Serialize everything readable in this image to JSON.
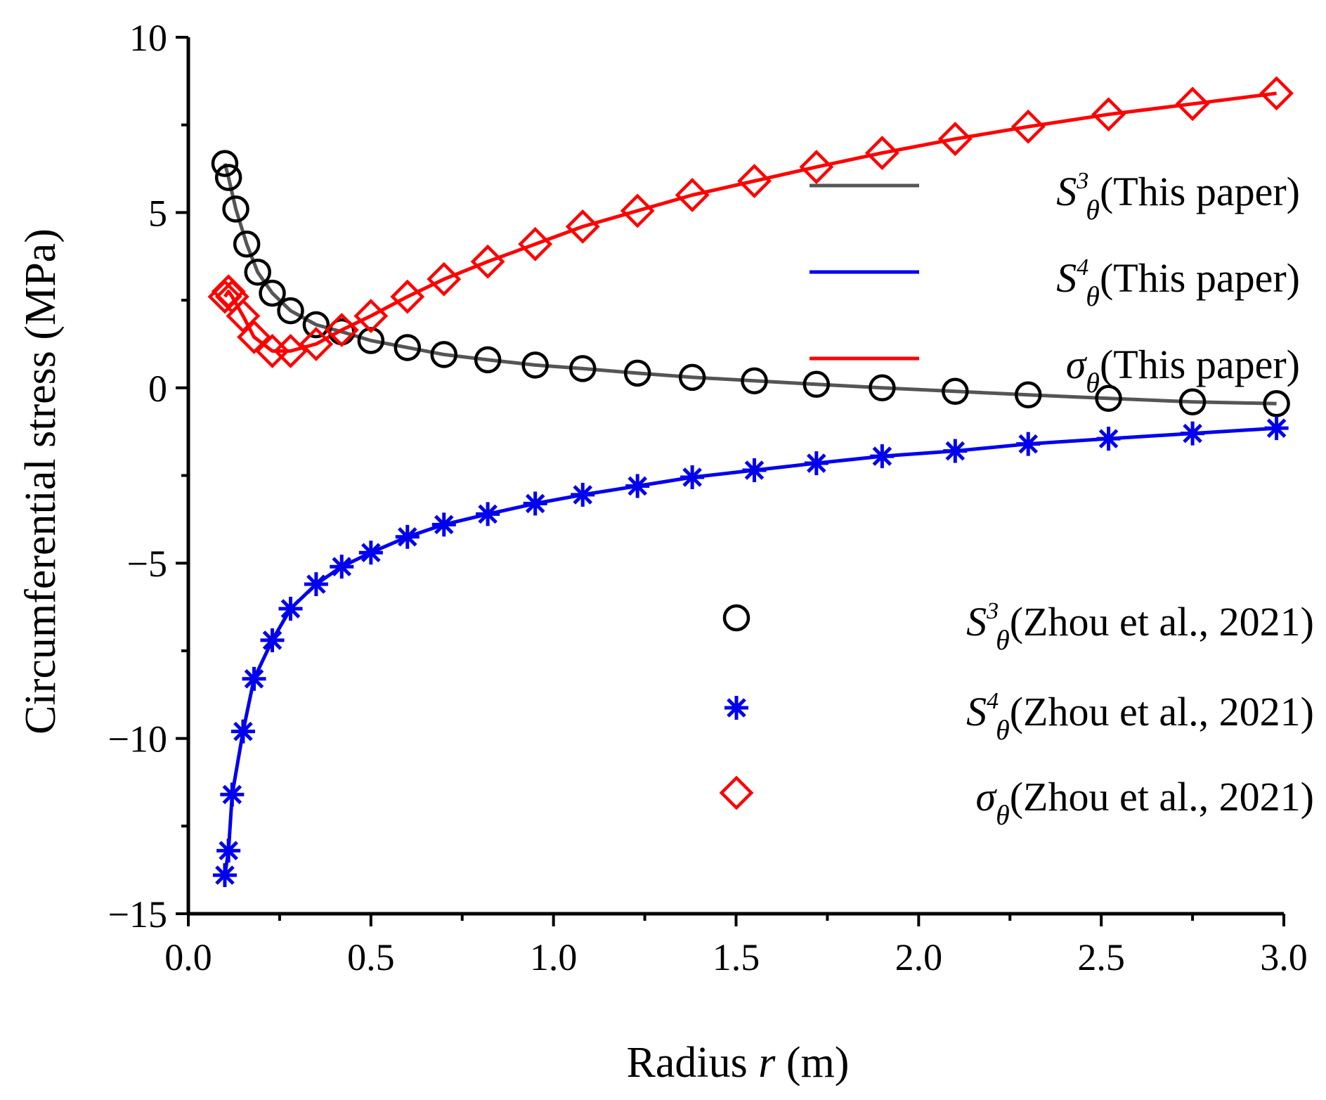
{
  "chart_data": {
    "type": "line",
    "xlabel": "Radius r (m)",
    "xlabel_parts": {
      "before": "Radius ",
      "var": "r",
      "after": " (m)"
    },
    "ylabel": "Circumferential stress (MPa)",
    "xlim": [
      0.0,
      3.0
    ],
    "ylim": [
      -15,
      10
    ],
    "x_ticks": [
      0.0,
      0.5,
      1.0,
      1.5,
      2.0,
      2.5,
      3.0
    ],
    "x_tick_labels": [
      "0.0",
      "0.5",
      "1.0",
      "1.5",
      "2.0",
      "2.5",
      "3.0"
    ],
    "y_ticks": [
      10,
      5,
      0,
      -5,
      -10,
      -15
    ],
    "y_tick_labels": [
      "10",
      "5",
      "0",
      "−5",
      "−10",
      "−15"
    ],
    "grid": false,
    "legend_placement": [
      "right",
      "bottom-right"
    ],
    "colors": {
      "S3": "#555555",
      "S4": "#0000ee",
      "sigma": "#ff0000",
      "ref_circle": "#000000",
      "ref_star": "#0000ee",
      "ref_diamond": "#ff0000"
    },
    "lines": [
      {
        "key": "S3",
        "legend": {
          "symbol": "S",
          "sup": "3",
          "sub": "θ",
          "text": "(This paper)"
        },
        "color": "#555555",
        "x": [
          0.1,
          0.11,
          0.13,
          0.16,
          0.19,
          0.23,
          0.28,
          0.35,
          0.42,
          0.5,
          0.6,
          0.7,
          0.82,
          0.95,
          1.08,
          1.23,
          1.38,
          1.55,
          1.72,
          1.9,
          2.1,
          2.3,
          2.52,
          2.75,
          2.98
        ],
        "y": [
          6.4,
          6.0,
          5.1,
          4.1,
          3.3,
          2.7,
          2.2,
          1.8,
          1.6,
          1.35,
          1.15,
          0.95,
          0.8,
          0.65,
          0.55,
          0.42,
          0.3,
          0.2,
          0.1,
          0.0,
          -0.1,
          -0.2,
          -0.3,
          -0.4,
          -0.45
        ]
      },
      {
        "key": "S4",
        "legend": {
          "symbol": "S",
          "sup": "4",
          "sub": "θ",
          "text": "(This paper)"
        },
        "color": "#0000ee",
        "x": [
          0.1,
          0.11,
          0.12,
          0.15,
          0.18,
          0.23,
          0.28,
          0.35,
          0.42,
          0.5,
          0.6,
          0.7,
          0.82,
          0.95,
          1.08,
          1.23,
          1.38,
          1.55,
          1.72,
          1.9,
          2.1,
          2.3,
          2.52,
          2.75,
          2.98
        ],
        "y": [
          -13.9,
          -13.2,
          -11.6,
          -9.8,
          -8.3,
          -7.2,
          -6.3,
          -5.6,
          -5.1,
          -4.7,
          -4.25,
          -3.9,
          -3.6,
          -3.3,
          -3.05,
          -2.8,
          -2.55,
          -2.35,
          -2.15,
          -1.95,
          -1.8,
          -1.6,
          -1.45,
          -1.3,
          -1.15
        ]
      },
      {
        "key": "sigma",
        "legend": {
          "symbol": "σ",
          "sup": "",
          "sub": "θ",
          "text": "(This paper)"
        },
        "color": "#ff0000",
        "x": [
          0.1,
          0.11,
          0.12,
          0.15,
          0.18,
          0.23,
          0.28,
          0.35,
          0.42,
          0.5,
          0.6,
          0.7,
          0.82,
          0.95,
          1.08,
          1.23,
          1.38,
          1.55,
          1.72,
          1.9,
          2.1,
          2.3,
          2.52,
          2.75,
          2.98
        ],
        "y": [
          2.6,
          2.75,
          2.6,
          2.05,
          1.45,
          1.05,
          1.05,
          1.25,
          1.65,
          2.05,
          2.6,
          3.1,
          3.6,
          4.1,
          4.6,
          5.05,
          5.5,
          5.9,
          6.3,
          6.7,
          7.1,
          7.45,
          7.8,
          8.1,
          8.4
        ]
      }
    ],
    "markers": [
      {
        "key": "ref_circle",
        "marker": "circle",
        "legend": {
          "symbol": "S",
          "sup": "3",
          "sub": "θ",
          "text": "(Zhou et al., 2021)"
        },
        "color": "#000000",
        "x": [
          0.1,
          0.11,
          0.13,
          0.16,
          0.19,
          0.23,
          0.28,
          0.35,
          0.42,
          0.5,
          0.6,
          0.7,
          0.82,
          0.95,
          1.08,
          1.23,
          1.38,
          1.55,
          1.72,
          1.9,
          2.1,
          2.3,
          2.52,
          2.75,
          2.98
        ],
        "y": [
          6.4,
          6.0,
          5.1,
          4.1,
          3.3,
          2.7,
          2.2,
          1.8,
          1.6,
          1.35,
          1.15,
          0.95,
          0.8,
          0.65,
          0.55,
          0.42,
          0.3,
          0.2,
          0.1,
          0.0,
          -0.1,
          -0.2,
          -0.3,
          -0.4,
          -0.45
        ]
      },
      {
        "key": "ref_star",
        "marker": "star",
        "legend": {
          "symbol": "S",
          "sup": "4",
          "sub": "θ",
          "text": "(Zhou et al., 2021)"
        },
        "color": "#0000ee",
        "x": [
          0.1,
          0.11,
          0.12,
          0.15,
          0.18,
          0.23,
          0.28,
          0.35,
          0.42,
          0.5,
          0.6,
          0.7,
          0.82,
          0.95,
          1.08,
          1.23,
          1.38,
          1.55,
          1.72,
          1.9,
          2.1,
          2.3,
          2.52,
          2.75,
          2.98
        ],
        "y": [
          -13.9,
          -13.2,
          -11.6,
          -9.8,
          -8.3,
          -7.2,
          -6.3,
          -5.6,
          -5.1,
          -4.7,
          -4.25,
          -3.9,
          -3.6,
          -3.3,
          -3.05,
          -2.8,
          -2.55,
          -2.35,
          -2.15,
          -1.95,
          -1.8,
          -1.6,
          -1.45,
          -1.3,
          -1.15
        ]
      },
      {
        "key": "ref_diamond",
        "marker": "diamond",
        "legend": {
          "symbol": "σ",
          "sup": "",
          "sub": "θ",
          "text": "(Zhou et al., 2021)"
        },
        "color": "#ff0000",
        "x": [
          0.1,
          0.11,
          0.12,
          0.15,
          0.18,
          0.23,
          0.28,
          0.35,
          0.42,
          0.5,
          0.6,
          0.7,
          0.82,
          0.95,
          1.08,
          1.23,
          1.38,
          1.55,
          1.72,
          1.9,
          2.1,
          2.3,
          2.52,
          2.75,
          2.98
        ],
        "y": [
          2.6,
          2.75,
          2.6,
          2.05,
          1.45,
          1.05,
          1.05,
          1.25,
          1.65,
          2.05,
          2.6,
          3.1,
          3.6,
          4.1,
          4.6,
          5.05,
          5.5,
          5.9,
          6.3,
          6.7,
          7.1,
          7.45,
          7.8,
          8.1,
          8.4
        ]
      }
    ]
  }
}
